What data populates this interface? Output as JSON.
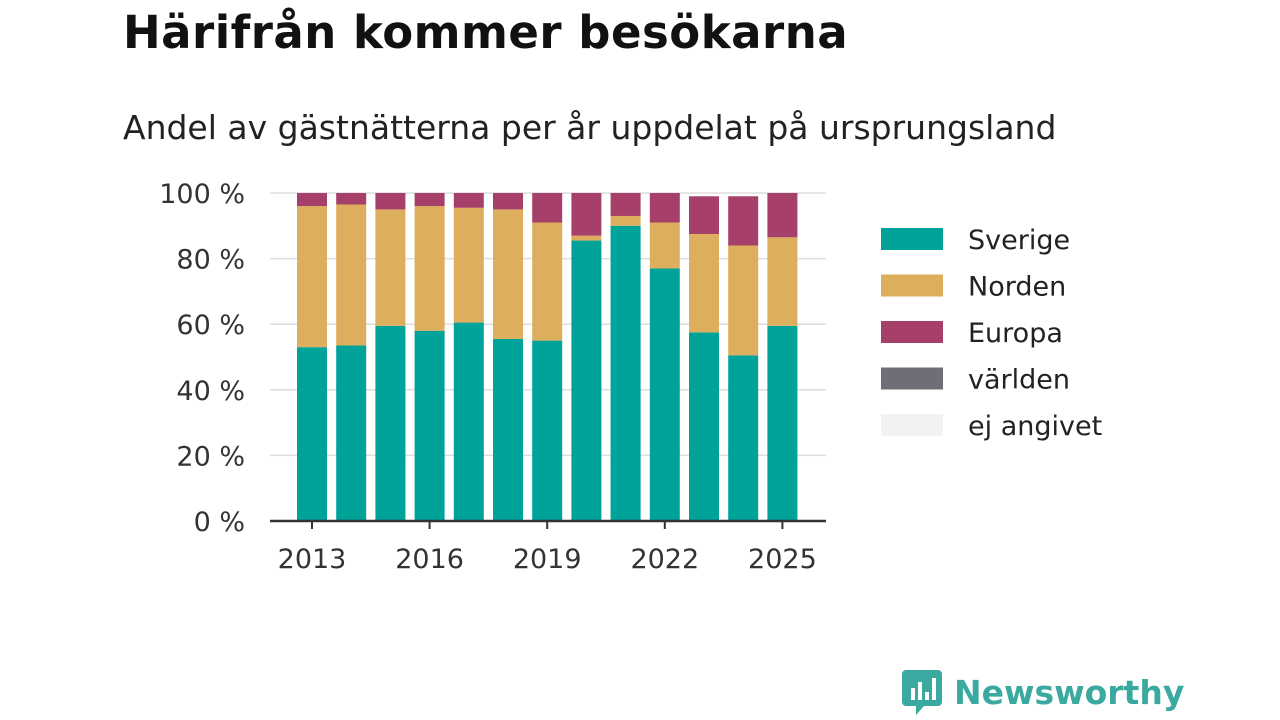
{
  "title": "Härifrån kommer besökarna",
  "subtitle": "Andel av gästnätterna per år uppdelat på ursprungsland",
  "brand": {
    "name": "Newsworthy",
    "icon": "newsworthy-logo-icon"
  },
  "chart_data": {
    "type": "bar",
    "stacked": true,
    "categories": [
      "2013",
      "2014",
      "2015",
      "2016",
      "2017",
      "2018",
      "2019",
      "2020",
      "2021",
      "2022",
      "2023",
      "2024",
      "2025"
    ],
    "x_tick_labels": [
      "2013",
      "2016",
      "2019",
      "2022",
      "2025"
    ],
    "y_tick_labels": [
      "0 %",
      "20 %",
      "40 %",
      "60 %",
      "80 %",
      "100 %"
    ],
    "ylim": [
      0,
      100
    ],
    "grid": true,
    "legend_position": "right",
    "series": [
      {
        "name": "Sverige",
        "color": "#00a39a",
        "values": [
          53,
          53.5,
          59.5,
          58,
          60.5,
          55.5,
          55,
          85.5,
          90,
          77,
          57.5,
          50.5,
          59.5
        ]
      },
      {
        "name": "Norden",
        "color": "#dcae5d",
        "values": [
          43,
          43,
          35.5,
          38,
          35,
          39.5,
          36,
          1.5,
          3,
          14,
          30,
          33.5,
          27
        ]
      },
      {
        "name": "Europa",
        "color": "#a63f69",
        "values": [
          4,
          3.5,
          5,
          4,
          4.5,
          5,
          9,
          13,
          7,
          9,
          11.5,
          15,
          13.5
        ]
      },
      {
        "name": "världen",
        "color": "#6e6e77",
        "values": [
          0,
          0,
          0,
          0,
          0,
          0,
          0,
          0,
          0,
          0,
          0,
          0,
          0
        ]
      },
      {
        "name": "ej angivet",
        "color": "#f2f2f2",
        "values": [
          0,
          0,
          0,
          0,
          0,
          0,
          0,
          0,
          0,
          0,
          0,
          0,
          0
        ]
      }
    ]
  }
}
